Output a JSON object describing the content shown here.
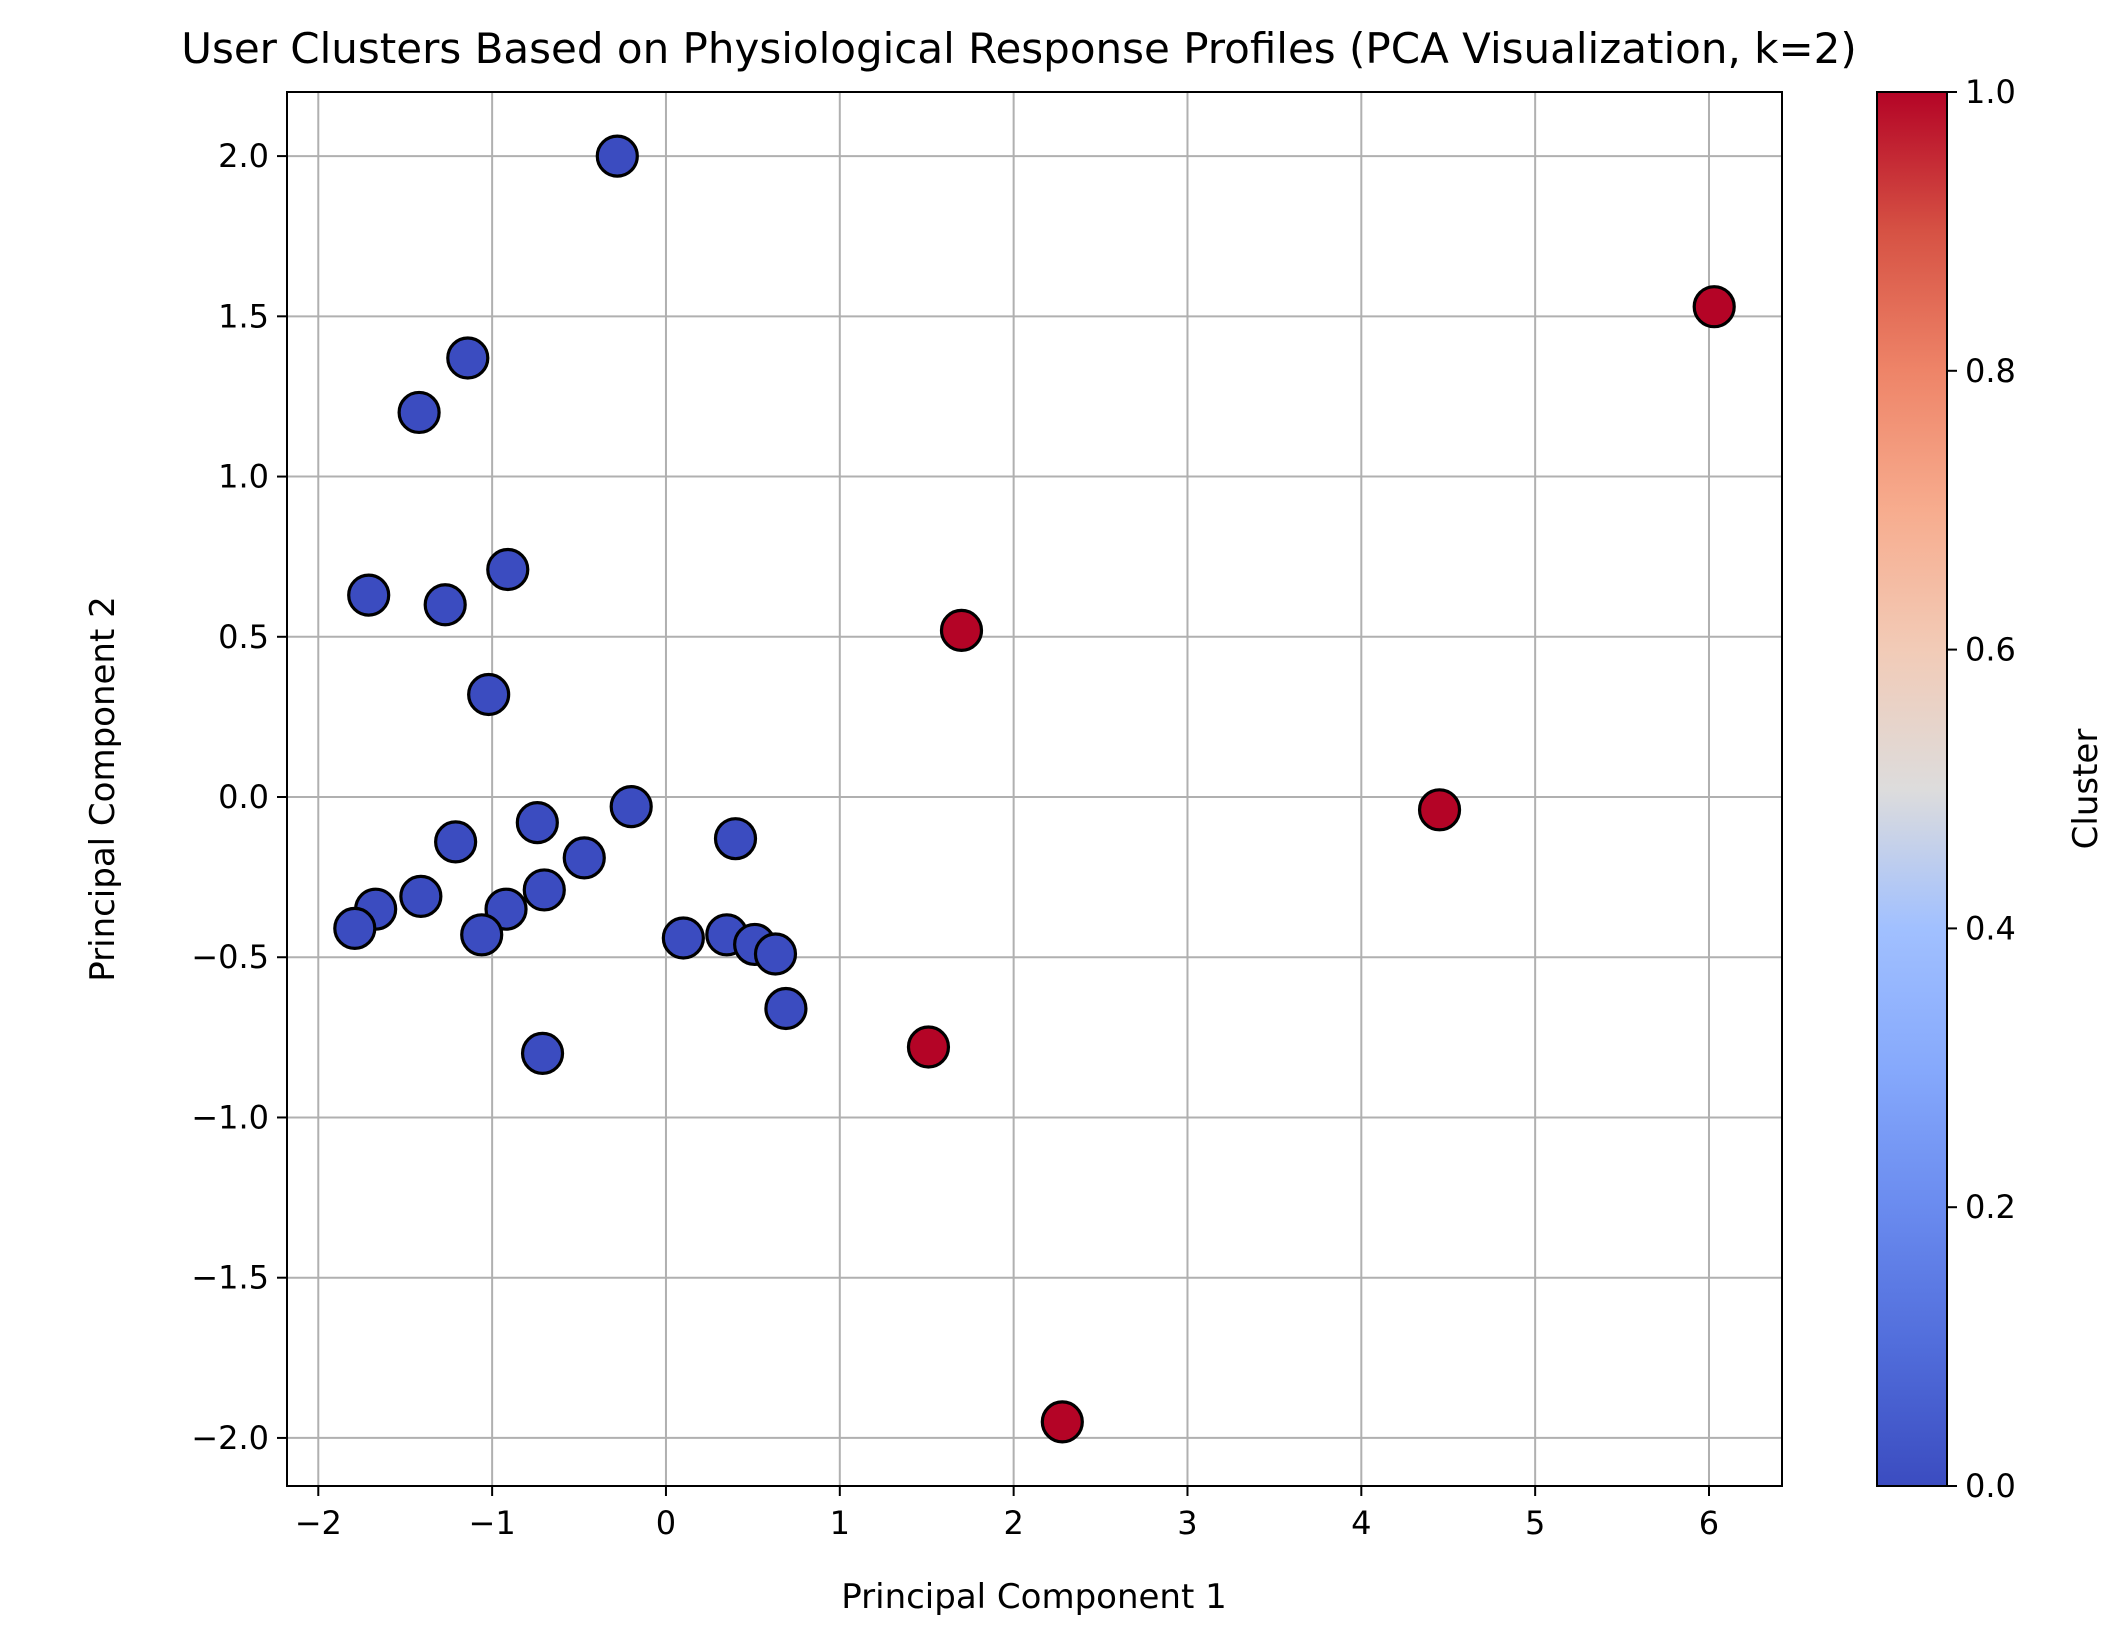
{
  "chart_data": {
    "type": "scatter",
    "title": "User Clusters Based on Physiological Response Profiles (PCA Visualization, k=2)",
    "xlabel": "Principal Component 1",
    "ylabel": "Principal Component 2",
    "xlim": [
      -2.18,
      6.42
    ],
    "ylim": [
      -2.15,
      2.2
    ],
    "xticks": [
      -2,
      -1,
      0,
      1,
      2,
      3,
      4,
      5,
      6
    ],
    "xtick_labels": [
      "−2",
      "−1",
      "0",
      "1",
      "2",
      "3",
      "4",
      "5",
      "6"
    ],
    "yticks": [
      -2.0,
      -1.5,
      -1.0,
      -0.5,
      0.0,
      0.5,
      1.0,
      1.5,
      2.0
    ],
    "ytick_labels": [
      "−2.0",
      "−1.5",
      "−1.0",
      "−0.5",
      "0.0",
      "0.5",
      "1.0",
      "1.5",
      "2.0"
    ],
    "grid": true,
    "colormap": "coolwarm",
    "colorbar": {
      "label": "Cluster",
      "range": [
        0.0,
        1.0
      ],
      "ticks": [
        0.0,
        0.2,
        0.4,
        0.6,
        0.8,
        1.0
      ],
      "tick_labels": [
        "0.0",
        "0.2",
        "0.4",
        "0.6",
        "0.8",
        "1.0"
      ]
    },
    "colors": {
      "cluster_0": "#3b4cc0",
      "cluster_1": "#b40426",
      "marker_edge": "#000000",
      "grid": "#b0b0b0"
    },
    "points": [
      {
        "x": -0.28,
        "y": 2.0,
        "cluster": 0
      },
      {
        "x": -1.14,
        "y": 1.37,
        "cluster": 0
      },
      {
        "x": -1.42,
        "y": 1.2,
        "cluster": 0
      },
      {
        "x": -0.91,
        "y": 0.71,
        "cluster": 0
      },
      {
        "x": -1.71,
        "y": 0.63,
        "cluster": 0
      },
      {
        "x": -1.27,
        "y": 0.6,
        "cluster": 0
      },
      {
        "x": -1.02,
        "y": 0.32,
        "cluster": 0
      },
      {
        "x": -0.2,
        "y": -0.03,
        "cluster": 0
      },
      {
        "x": -0.74,
        "y": -0.08,
        "cluster": 0
      },
      {
        "x": 0.4,
        "y": -0.13,
        "cluster": 0
      },
      {
        "x": -1.21,
        "y": -0.14,
        "cluster": 0
      },
      {
        "x": -0.47,
        "y": -0.19,
        "cluster": 0
      },
      {
        "x": -0.7,
        "y": -0.29,
        "cluster": 0
      },
      {
        "x": -1.41,
        "y": -0.31,
        "cluster": 0
      },
      {
        "x": -1.67,
        "y": -0.35,
        "cluster": 0
      },
      {
        "x": -0.92,
        "y": -0.35,
        "cluster": 0
      },
      {
        "x": -1.79,
        "y": -0.41,
        "cluster": 0
      },
      {
        "x": -1.06,
        "y": -0.43,
        "cluster": 0
      },
      {
        "x": 0.35,
        "y": -0.43,
        "cluster": 0
      },
      {
        "x": 0.1,
        "y": -0.44,
        "cluster": 0
      },
      {
        "x": 0.51,
        "y": -0.46,
        "cluster": 0
      },
      {
        "x": 0.63,
        "y": -0.49,
        "cluster": 0
      },
      {
        "x": 0.69,
        "y": -0.66,
        "cluster": 0
      },
      {
        "x": -0.71,
        "y": -0.8,
        "cluster": 0
      },
      {
        "x": 6.03,
        "y": 1.53,
        "cluster": 1
      },
      {
        "x": 1.7,
        "y": 0.52,
        "cluster": 1
      },
      {
        "x": 4.45,
        "y": -0.04,
        "cluster": 1
      },
      {
        "x": 1.51,
        "y": -0.78,
        "cluster": 1
      },
      {
        "x": 2.28,
        "y": -1.95,
        "cluster": 1
      }
    ]
  }
}
